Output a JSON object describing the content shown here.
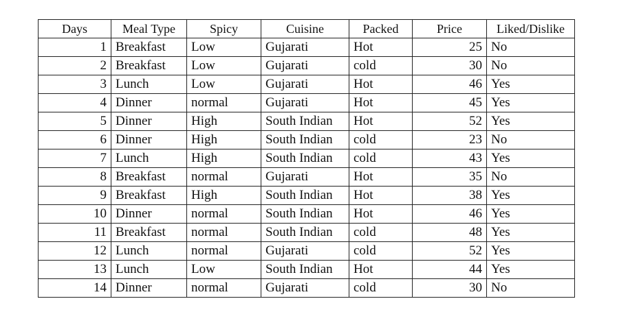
{
  "table": {
    "columns": [
      "Days",
      "Meal Type",
      "Spicy",
      "Cuisine",
      "Packed",
      "Price",
      "Liked/Dislike"
    ],
    "rows": [
      [
        "1",
        "Breakfast",
        "Low",
        "Gujarati",
        "Hot",
        "25",
        "No"
      ],
      [
        "2",
        "Breakfast",
        "Low",
        "Gujarati",
        "cold",
        "30",
        "No"
      ],
      [
        "3",
        "Lunch",
        "Low",
        "Gujarati",
        "Hot",
        "46",
        "Yes"
      ],
      [
        "4",
        "Dinner",
        "normal",
        "Gujarati",
        "Hot",
        "45",
        "Yes"
      ],
      [
        "5",
        "Dinner",
        "High",
        "South Indian",
        "Hot",
        "52",
        "Yes"
      ],
      [
        "6",
        "Dinner",
        "High",
        "South Indian",
        "cold",
        "23",
        "No"
      ],
      [
        "7",
        "Lunch",
        "High",
        "South Indian",
        "cold",
        "43",
        "Yes"
      ],
      [
        "8",
        "Breakfast",
        "normal",
        "Gujarati",
        "Hot",
        "35",
        "No"
      ],
      [
        "9",
        "Breakfast",
        "High",
        "South Indian",
        "Hot",
        "38",
        "Yes"
      ],
      [
        "10",
        "Dinner",
        "normal",
        "South Indian",
        "Hot",
        "46",
        "Yes"
      ],
      [
        "11",
        "Breakfast",
        "normal",
        "South Indian",
        "cold",
        "48",
        "Yes"
      ],
      [
        "12",
        "Lunch",
        "normal",
        "Gujarati",
        "cold",
        "52",
        "Yes"
      ],
      [
        "13",
        "Lunch",
        "Low",
        "South Indian",
        "Hot",
        "44",
        "Yes"
      ],
      [
        "14",
        "Dinner",
        "normal",
        "Gujarati",
        "cold",
        "30",
        "No"
      ]
    ]
  }
}
